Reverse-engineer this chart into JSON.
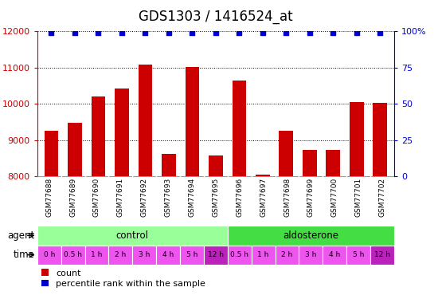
{
  "title": "GDS1303 / 1416524_at",
  "samples": [
    "GSM77688",
    "GSM77689",
    "GSM77690",
    "GSM77691",
    "GSM77692",
    "GSM77693",
    "GSM77694",
    "GSM77695",
    "GSM77696",
    "GSM77697",
    "GSM77698",
    "GSM77699",
    "GSM77700",
    "GSM77701",
    "GSM77702"
  ],
  "counts": [
    9270,
    9470,
    10200,
    10430,
    11080,
    8620,
    11020,
    8580,
    10640,
    8060,
    9270,
    8730,
    8730,
    10060,
    10030
  ],
  "ylim": [
    8000,
    12000
  ],
  "yticks": [
    8000,
    9000,
    10000,
    11000,
    12000
  ],
  "right_yticks": [
    0,
    25,
    50,
    75,
    100
  ],
  "right_ylim": [
    0,
    100
  ],
  "bar_color": "#cc0000",
  "dot_color": "#0000cc",
  "bg_color": "#ffffff",
  "sample_box_color": "#bbbbbb",
  "agent_control_color": "#99ff99",
  "agent_aldo_color": "#44dd44",
  "time_color": "#ee55ee",
  "time_12h_color": "#bb22bb",
  "time_labels": [
    "0 h",
    "0.5 h",
    "1 h",
    "2 h",
    "3 h",
    "4 h",
    "5 h",
    "12 h",
    "0.5 h",
    "1 h",
    "2 h",
    "3 h",
    "4 h",
    "5 h",
    "12 h"
  ],
  "n_control": 8,
  "n_aldo": 7,
  "title_fontsize": 12,
  "tick_fontsize": 8,
  "label_fontsize": 8.5,
  "xticklabel_fontsize": 6.5,
  "legend_fontsize": 8,
  "time_fontsize": 6.5
}
